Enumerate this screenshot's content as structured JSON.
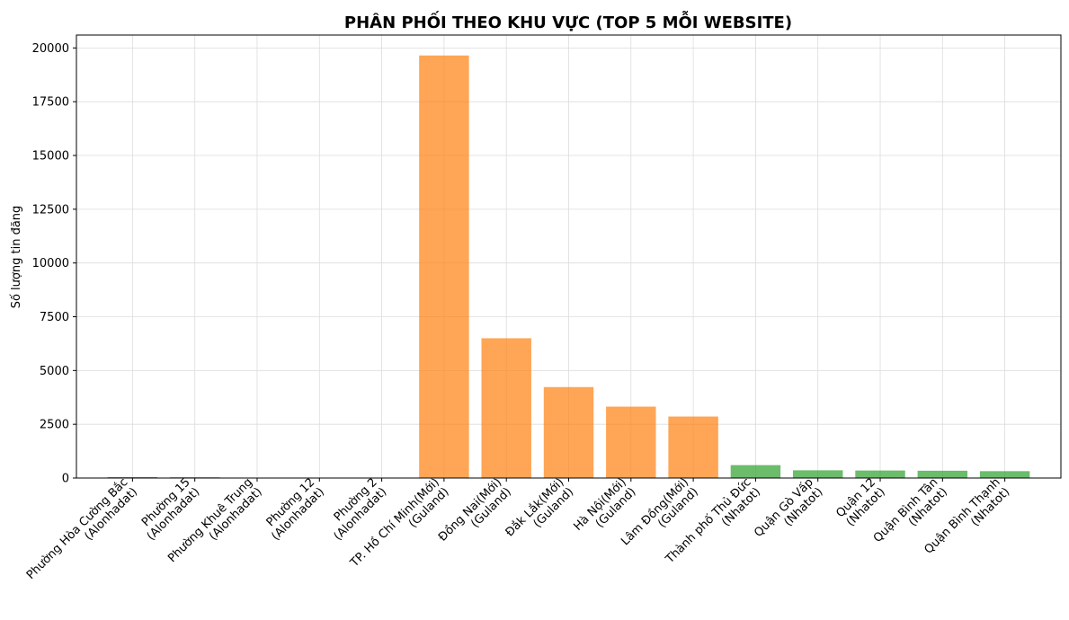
{
  "chart_data": {
    "type": "bar",
    "title": "PHÂN PHỐI THEO KHU VỰC (TOP 5 MỖI WEBSITE)",
    "xlabel": "",
    "ylabel": "Số lượng tin đăng",
    "ylim": [
      0,
      20600
    ],
    "yticks": [
      0,
      2500,
      5000,
      7500,
      10000,
      12500,
      15000,
      17500,
      20000
    ],
    "grid": true,
    "legend": "none",
    "categories": [
      [
        "Phường Hòa Cường Bắc",
        "(Alonhadat)"
      ],
      [
        "Phường 15",
        "(Alonhadat)"
      ],
      [
        "Phường Khuê Trung",
        "(Alonhadat)"
      ],
      [
        "Phường 12",
        "(Alonhadat)"
      ],
      [
        "Phường 2",
        "(Alonhadat)"
      ],
      [
        "TP. Hồ Chí Minh(Mới)",
        "(Guland)"
      ],
      [
        "Đồng Nai(Mới)",
        "(Guland)"
      ],
      [
        "Đắk Lắk(Mới)",
        "(Guland)"
      ],
      [
        "Hà Nội(Mới)",
        "(Guland)"
      ],
      [
        "Lâm Đồng(Mới)",
        "(Guland)"
      ],
      [
        "Thành phố Thủ Đức",
        "(Nhatot)"
      ],
      [
        "Quận Gò Vấp",
        "(Nhatot)"
      ],
      [
        "Quận 12",
        "(Nhatot)"
      ],
      [
        "Quận Bình Tân",
        "(Nhatot)"
      ],
      [
        "Quận Bình Thạnh",
        "(Nhatot)"
      ]
    ],
    "values": [
      45,
      35,
      20,
      18,
      15,
      19650,
      6500,
      4230,
      3320,
      2860,
      600,
      360,
      350,
      340,
      320
    ],
    "colors": [
      "#1f77b4",
      "#1f77b4",
      "#1f77b4",
      "#1f77b4",
      "#1f77b4",
      "#ff7f0e",
      "#ff7f0e",
      "#ff7f0e",
      "#ff7f0e",
      "#ff7f0e",
      "#2ca02c",
      "#2ca02c",
      "#2ca02c",
      "#2ca02c",
      "#2ca02c"
    ],
    "bar_opacity": 0.7
  }
}
